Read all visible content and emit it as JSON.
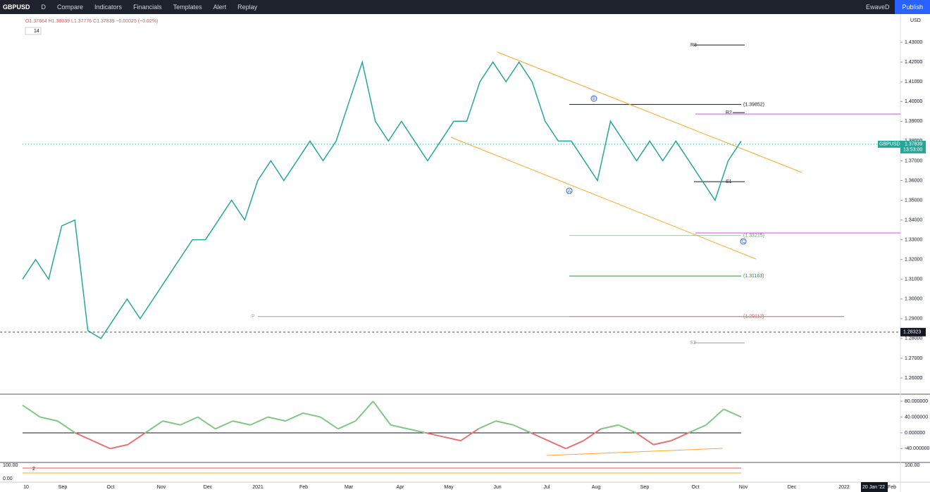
{
  "toolbar": {
    "symbol": "GBPUSD",
    "interval": "D",
    "items": [
      "Compare",
      "Indicators",
      "Financials",
      "Templates",
      "Alert",
      "Replay"
    ],
    "account": "EwaveD",
    "publish": "Publish"
  },
  "legend": {
    "ohlc": "O1.37864 H1.38039 L1.37776 C1.37839 −0.00025 (−0.02%)",
    "indicator": "14"
  },
  "currency": "USD",
  "chart_data": [
    {
      "type": "line",
      "values": [
        1.31,
        1.32,
        1.31,
        1.337,
        1.34,
        1.284,
        1.28,
        1.29,
        1.3,
        1.29,
        1.3,
        1.31,
        1.32,
        1.33,
        1.33,
        1.34,
        1.35,
        1.34,
        1.36,
        1.37,
        1.36,
        1.37,
        1.38,
        1.37,
        1.38,
        1.4,
        1.42,
        1.39,
        1.38,
        1.39,
        1.38,
        1.37,
        1.38,
        1.39,
        1.39,
        1.41,
        1.42,
        1.41,
        1.42,
        1.41,
        1.39,
        1.38,
        1.38,
        1.37,
        1.36,
        1.39,
        1.38,
        1.37,
        1.38,
        1.37,
        1.38,
        1.37,
        1.36,
        1.35,
        1.37,
        1.38
      ],
      "color": "#26a69a",
      "ylim": [
        1.2518,
        1.4443
      ],
      "yticks": [
        {
          "value": 1.43,
          "label": "1.43000"
        },
        {
          "value": 1.42,
          "label": "1.42000"
        },
        {
          "value": 1.41,
          "label": "1.41000"
        },
        {
          "value": 1.4,
          "label": "1.40000"
        },
        {
          "value": 1.39,
          "label": "1.39000"
        },
        {
          "value": 1.38,
          "label": "1.38000"
        },
        {
          "value": 1.37,
          "label": "1.37000"
        },
        {
          "value": 1.36,
          "label": "1.36000"
        },
        {
          "value": 1.35,
          "label": "1.35000"
        },
        {
          "value": 1.34,
          "label": "1.34000"
        },
        {
          "value": 1.33,
          "label": "1.33000"
        },
        {
          "value": 1.32,
          "label": "1.32000"
        },
        {
          "value": 1.31,
          "label": "1.31000"
        },
        {
          "value": 1.3,
          "label": "1.30000"
        },
        {
          "value": 1.29,
          "label": "1.29000"
        },
        {
          "value": 1.28,
          "label": "1.28000"
        },
        {
          "value": 1.27,
          "label": "1.27000"
        },
        {
          "value": 1.26,
          "label": "1.26000"
        }
      ],
      "levels": [
        {
          "label": "R3",
          "value": 1.4286
        },
        {
          "label": "(1.39852)",
          "value": 1.39852
        },
        {
          "label": "R2",
          "value": 1.3944
        },
        {
          "label": "S1",
          "value": 1.3594
        },
        {
          "label": "(1.33215)",
          "value": 1.33215
        },
        {
          "label": "(1.31163)",
          "value": 1.31163
        },
        {
          "label": "(1.29112)",
          "value": 1.29112
        },
        {
          "label": "P",
          "value": 1.29112
        },
        {
          "label": "S3",
          "value": 1.2778
        }
      ],
      "level_colors": [
        "#131722",
        "#131722",
        "#131722",
        "#131722",
        "#a5c8a5",
        "#388e3c",
        "#ef5350",
        "#9e9e9e",
        "#9e9e9e"
      ],
      "last_price": {
        "symbol": "GBPUSD",
        "value": 1.37839,
        "label": "1.37839",
        "countdown": "13:53:00"
      },
      "crosshair": {
        "value": 1.28323,
        "label": "1.28323"
      },
      "wave_labels": [
        "A",
        "B",
        "C"
      ],
      "x_labels": [
        "10",
        "Sep",
        "Oct",
        "Nov",
        "Dec",
        "2021",
        "Feb",
        "Mar",
        "Apr",
        "May",
        "Jun",
        "Jul",
        "Aug",
        "Sep",
        "Oct",
        "Nov",
        "Dec",
        "2022",
        "20 Jan '22",
        "Feb"
      ]
    },
    {
      "type": "line",
      "values": [
        70,
        40,
        30,
        0,
        -20,
        -40,
        -30,
        0,
        30,
        20,
        40,
        10,
        30,
        20,
        40,
        30,
        50,
        40,
        10,
        30,
        80,
        20,
        10,
        0,
        -10,
        -20,
        10,
        30,
        20,
        0,
        -20,
        -40,
        -20,
        10,
        20,
        0,
        -30,
        -20,
        0,
        20,
        60,
        40
      ],
      "ylim": [
        -75,
        98
      ],
      "yticks": [
        {
          "value": 80,
          "label": "80.000000"
        },
        {
          "value": 40,
          "label": "40.000000"
        },
        {
          "value": 0,
          "label": "0.000000"
        },
        {
          "value": -40,
          "label": "-40.000000"
        }
      ],
      "bottom_labels": [
        "100.00",
        "0.00",
        "100.00",
        "2"
      ]
    }
  ]
}
